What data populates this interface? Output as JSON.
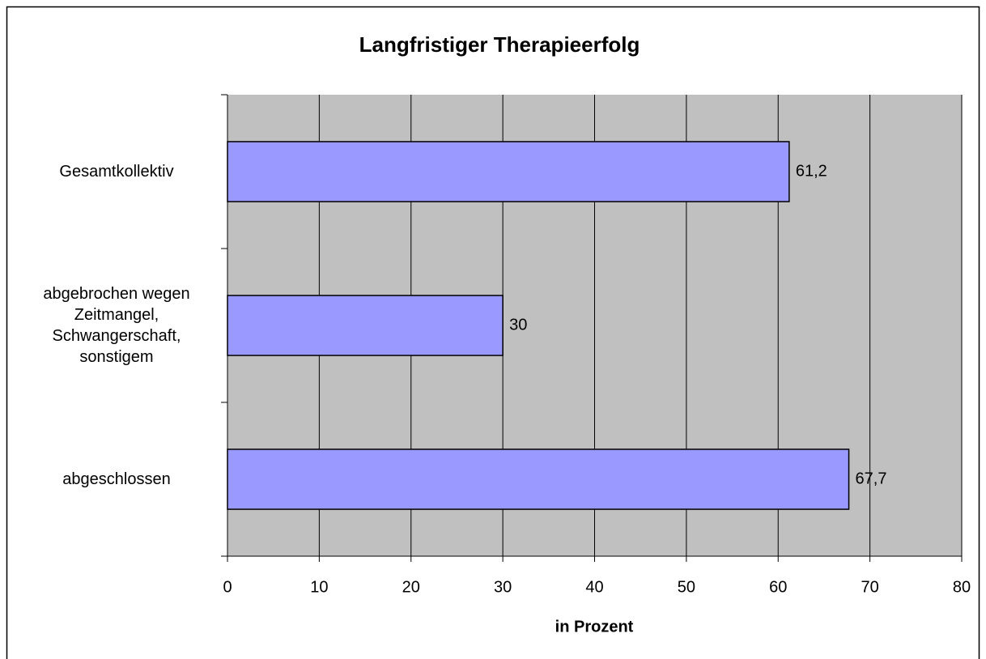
{
  "chart_data": {
    "type": "barh",
    "title": "Langfristiger Therapieerfolg",
    "x_label": "in Prozent",
    "categories": [
      "Gesamtkollektiv",
      "abgebrochen wegen Zeitmangel, Schwangerschaft, sonstigem",
      "abgeschlossen"
    ],
    "values": [
      61.2,
      30,
      67.7
    ],
    "value_labels": [
      "61,2",
      "30",
      "67,7"
    ],
    "color": "#9999ff",
    "xlim": [
      0,
      80
    ],
    "xticks": [
      0,
      10,
      20,
      30,
      40,
      50,
      60,
      70,
      80
    ],
    "grid": true
  }
}
